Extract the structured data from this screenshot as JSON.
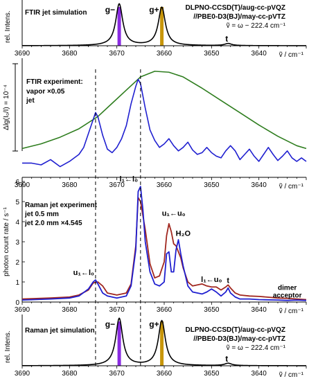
{
  "chart_data": [
    {
      "type": "line",
      "panel": "FTIR jet simulation",
      "title": "FTIR jet simulation",
      "ylabel": "rel. Intens.",
      "xlabel": "ṽ / cm⁻¹",
      "xlim": [
        3690,
        3630
      ],
      "x_ticks": [
        3690,
        3680,
        3670,
        3660,
        3650,
        3640
      ],
      "method_lines": [
        "DLPNO-CCSD(T)/aug-cc-pVQZ",
        "//PBE0-D3(BJ)/may-cc-pVTZ",
        "ṽ = ω − 222.4 cm⁻¹"
      ],
      "peak_labels": [
        {
          "label": "g−",
          "x": 3669.5,
          "color": "#8a2be2"
        },
        {
          "label": "g+",
          "x": 3660.5,
          "color": "#c8960a"
        },
        {
          "label": "t",
          "x": 3646.5,
          "color": "#c0392b"
        }
      ],
      "stick_lines": [
        {
          "x": 3669.5,
          "color": "#8a2be2"
        },
        {
          "x": 3660.5,
          "color": "#c8960a"
        }
      ],
      "series": [
        {
          "name": "simulation",
          "color": "#000000",
          "peaks": [
            [
              3669.5,
              1.0,
              0.9
            ],
            [
              3660.5,
              0.92,
              0.9
            ],
            [
              3646.5,
              0.05,
              0.9
            ]
          ]
        }
      ]
    },
    {
      "type": "line",
      "panel": "FTIR experiment",
      "title": "FTIR experiment:",
      "ylabel": "Δlg(I₀/I) = 10⁻⁴",
      "xlabel": "ṽ / cm⁻¹",
      "xlim": [
        3690,
        3630
      ],
      "x_ticks": [
        3690,
        3680,
        3670,
        3660,
        3650,
        3640
      ],
      "legend_placement": "top-left",
      "series": [
        {
          "name": "vapor",
          "suffix": "×0.05",
          "color": "#2e7d1e",
          "x": [
            3690,
            3686,
            3682,
            3678,
            3674,
            3671,
            3668,
            3665,
            3662,
            3659,
            3656,
            3652,
            3648,
            3644,
            3640,
            3636,
            3632,
            3630
          ],
          "y": [
            0.1,
            0.15,
            0.22,
            0.31,
            0.44,
            0.58,
            0.72,
            0.86,
            0.92,
            0.91,
            0.86,
            0.74,
            0.61,
            0.48,
            0.35,
            0.23,
            0.13,
            0.1
          ]
        },
        {
          "name": "jet",
          "suffix": "",
          "color": "#1f1fd0",
          "x": [
            3690,
            3688,
            3686,
            3684,
            3682,
            3680,
            3678,
            3677,
            3676,
            3675,
            3674.5,
            3674,
            3673,
            3672,
            3671,
            3670,
            3669,
            3668,
            3667,
            3666,
            3665.5,
            3665,
            3664,
            3663,
            3662,
            3661,
            3660,
            3659,
            3658,
            3657,
            3656,
            3655,
            3654,
            3653,
            3652,
            3651,
            3650,
            3649,
            3648,
            3647,
            3646,
            3645,
            3644,
            3643,
            3642,
            3641,
            3640,
            3639,
            3638,
            3637,
            3636,
            3635,
            3634,
            3633,
            3632,
            3631,
            3630
          ],
          "y": [
            0.02,
            0.02,
            0.0,
            0.06,
            -0.02,
            0.04,
            0.12,
            0.2,
            0.36,
            0.52,
            0.6,
            0.55,
            0.34,
            0.18,
            0.14,
            0.2,
            0.3,
            0.45,
            0.7,
            0.9,
            0.98,
            0.93,
            0.65,
            0.4,
            0.28,
            0.2,
            0.24,
            0.3,
            0.22,
            0.16,
            0.2,
            0.26,
            0.17,
            0.12,
            0.14,
            0.2,
            0.14,
            0.1,
            0.08,
            0.16,
            0.22,
            0.16,
            0.06,
            0.12,
            0.18,
            0.1,
            0.04,
            0.12,
            0.2,
            0.12,
            0.05,
            0.1,
            0.16,
            0.08,
            0.04,
            0.08,
            0.04
          ]
        }
      ]
    },
    {
      "type": "line",
      "panel": "Raman jet experiment",
      "title": "Raman jet experiment",
      "ylabel": "photon count rate / s⁻¹",
      "xlabel": "ṽ / cm⁻¹",
      "xlim": [
        3690,
        3630
      ],
      "ylim": [
        0,
        6
      ],
      "x_ticks": [
        3690,
        3680,
        3670,
        3660,
        3650,
        3640
      ],
      "y_ticks": [
        0,
        1,
        2,
        3,
        4,
        5,
        6
      ],
      "legend_placement": "top-left",
      "peak_annotations": [
        {
          "text": "l₁←l₀",
          "x": 3667.5,
          "y": 6.0
        },
        {
          "text": "u₁←u₀",
          "x": 3658,
          "y": 4.3
        },
        {
          "text": "H₂O",
          "x": 3656,
          "y": 3.3
        },
        {
          "text": "u₁←l₀",
          "x": 3677,
          "y": 1.35
        },
        {
          "text": "l₁←u₀",
          "x": 3650,
          "y": 1.0
        },
        {
          "text": "t",
          "x": 3646.5,
          "y": 0.95
        },
        {
          "text": "dimer",
          "x": 3634,
          "y": 0.6
        },
        {
          "text": "acceptor",
          "x": 3634,
          "y": 0.22
        }
      ],
      "series": [
        {
          "name": "jet 0.5 mm",
          "suffix": "",
          "color": "#a0261e",
          "x": [
            3690,
            3684,
            3680,
            3678,
            3676,
            3675,
            3674,
            3673,
            3672,
            3670,
            3668,
            3667,
            3666,
            3665.5,
            3665,
            3664,
            3663,
            3662,
            3661,
            3660,
            3659.5,
            3659,
            3658.5,
            3658,
            3657.5,
            3657,
            3656.5,
            3656,
            3655,
            3654,
            3652,
            3651,
            3650,
            3649,
            3648,
            3647,
            3646.5,
            3646,
            3645,
            3644,
            3642,
            3640,
            3636,
            3634,
            3632,
            3630
          ],
          "y": [
            0.15,
            0.2,
            0.25,
            0.35,
            0.6,
            0.95,
            1.0,
            0.8,
            0.45,
            0.35,
            0.45,
            0.9,
            2.8,
            5.2,
            5.0,
            3.6,
            1.9,
            1.2,
            1.3,
            2.0,
            3.3,
            3.9,
            3.5,
            2.9,
            2.8,
            2.5,
            2.2,
            1.7,
            1.0,
            0.8,
            0.9,
            0.8,
            0.75,
            0.75,
            0.6,
            0.75,
            0.85,
            0.7,
            0.45,
            0.35,
            0.3,
            0.28,
            0.2,
            0.18,
            0.15,
            0.12
          ]
        },
        {
          "name": "jet 2.0 mm",
          "suffix": "×4.545",
          "color": "#1f1fd0",
          "x": [
            3690,
            3684,
            3680,
            3678,
            3676,
            3675,
            3674.5,
            3674,
            3673,
            3672,
            3670,
            3668,
            3667,
            3666,
            3665.5,
            3665,
            3664.5,
            3664,
            3663,
            3662,
            3661,
            3660,
            3659.5,
            3659,
            3658.5,
            3658,
            3657.5,
            3657,
            3656.5,
            3656,
            3655,
            3654,
            3652,
            3651,
            3650,
            3649,
            3648,
            3647,
            3646.5,
            3646,
            3645,
            3644,
            3642,
            3640,
            3636,
            3634,
            3632,
            3630
          ],
          "y": [
            0.1,
            0.15,
            0.2,
            0.3,
            0.65,
            1.0,
            1.1,
            0.9,
            0.45,
            0.3,
            0.2,
            0.3,
            0.8,
            2.6,
            5.5,
            5.75,
            4.6,
            3.0,
            1.5,
            0.9,
            0.8,
            1.0,
            2.4,
            2.5,
            1.5,
            1.5,
            2.6,
            3.1,
            2.4,
            1.8,
            0.8,
            0.5,
            0.4,
            0.5,
            0.65,
            0.5,
            0.3,
            0.5,
            0.7,
            0.45,
            0.25,
            0.15,
            0.15,
            0.12,
            0.1,
            0.08,
            0.1,
            0.08
          ]
        }
      ]
    },
    {
      "type": "line",
      "panel": "Raman jet simulation",
      "title": "Raman jet simulation",
      "ylabel": "rel. Intens.",
      "xlabel": "ṽ / cm⁻¹",
      "xlim": [
        3690,
        3630
      ],
      "x_ticks": [
        3690,
        3680,
        3670,
        3660,
        3650,
        3640
      ],
      "method_lines": [
        "DLPNO-CCSD(T)/aug-cc-pVQZ",
        "//PBE0-D3(BJ)/may-cc-pVTZ",
        "ṽ = ω − 222.4 cm⁻¹"
      ],
      "peak_labels": [
        {
          "label": "g−",
          "x": 3669.5,
          "color": "#8a2be2"
        },
        {
          "label": "g+",
          "x": 3660.5,
          "color": "#c8960a"
        },
        {
          "label": "t",
          "x": 3646.5,
          "color": "#c0392b"
        }
      ],
      "stick_lines": [
        {
          "x": 3669.5,
          "color": "#8a2be2"
        },
        {
          "x": 3660.5,
          "color": "#c8960a"
        }
      ],
      "series": [
        {
          "name": "simulation",
          "color": "#000000",
          "peaks": [
            [
              3669.5,
              1.0,
              0.9
            ],
            [
              3660.5,
              0.95,
              0.9
            ],
            [
              3646.5,
              0.05,
              0.9
            ]
          ]
        }
      ]
    }
  ],
  "dashed_lines_x": [
    3674.5,
    3665
  ]
}
